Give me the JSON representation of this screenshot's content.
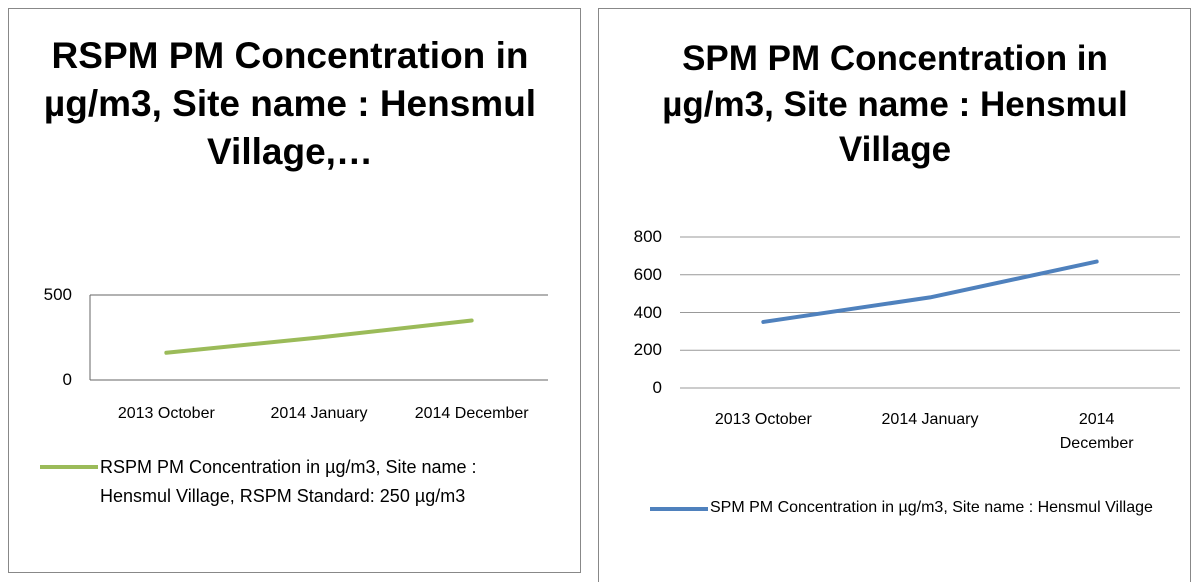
{
  "chart_data": [
    {
      "type": "line",
      "title": "RSPM PM Concentration in µg/m3, Site name : Hensmul Village,…",
      "categories": [
        "2013 October",
        "2014 January",
        "2014 December"
      ],
      "series": [
        {
          "name": "RSPM PM Concentration in µg/m3, Site name : Hensmul Village, RSPM Standard: 250 µg/m3",
          "color": "#9bbb59",
          "values": [
            160,
            250,
            350
          ]
        }
      ],
      "ylim": [
        0,
        500
      ],
      "yticks": [
        0,
        500
      ],
      "grid": true,
      "legend": "bottom"
    },
    {
      "type": "line",
      "title": "SPM PM Concentration in µg/m3, Site name : Hensmul Village",
      "categories": [
        "2013 October",
        "2014 January",
        "2014 December"
      ],
      "series": [
        {
          "name": "SPM PM Concentration in µg/m3, Site name : Hensmul Village",
          "color": "#4f81bd",
          "values": [
            350,
            480,
            670
          ]
        }
      ],
      "ylim": [
        0,
        800
      ],
      "yticks": [
        0,
        200,
        400,
        600,
        800
      ],
      "grid": true,
      "legend": "bottom"
    }
  ]
}
